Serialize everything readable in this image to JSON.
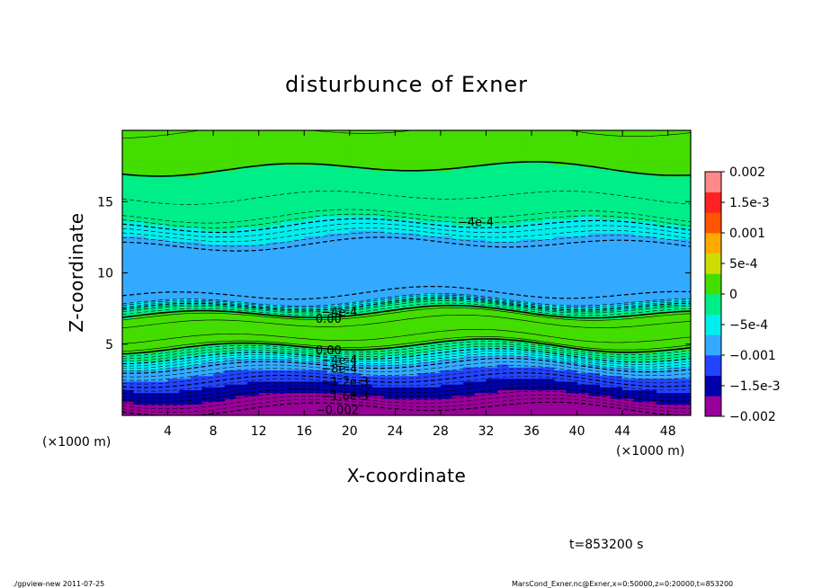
{
  "chart_data": {
    "type": "heatmap",
    "title": "disturbunce of Exner",
    "xlabel": "X-coordinate",
    "ylabel": "Z-coordinate",
    "x_scale_label": "(×1000 m)",
    "y_scale_label": "(×1000 m)",
    "xlim": [
      0,
      50
    ],
    "ylim": [
      0,
      20
    ],
    "x_ticks": [
      4,
      8,
      12,
      16,
      20,
      24,
      28,
      32,
      36,
      40,
      44,
      48
    ],
    "y_ticks": [
      5,
      10,
      15
    ],
    "colorbar": {
      "range": [
        -0.002,
        0.002
      ],
      "tick_labels": [
        "0.002",
        "1.5e-3",
        "0.001",
        "5e-4",
        "0",
        "−5e-4",
        "−0.001",
        "−1.5e-3",
        "−0.002"
      ],
      "tick_values": [
        0.002,
        0.0015,
        0.001,
        0.0005,
        0,
        -0.0005,
        -0.001,
        -0.0015,
        -0.002
      ],
      "colors": [
        "#990099",
        "#0000aa",
        "#2244ff",
        "#33aaff",
        "#00eeee",
        "#00ee88",
        "#44dd00",
        "#ccdd00",
        "#ffaa00",
        "#ff5500",
        "#ff2222",
        "#ff8888"
      ]
    },
    "profile_z": [
      0,
      1,
      2,
      3,
      3.5,
      4.5,
      5,
      6,
      7,
      7.5,
      8,
      9,
      10,
      12,
      13,
      14,
      16,
      20
    ],
    "profile_values": [
      -0.0022,
      -0.0018,
      -0.0014,
      -0.001,
      -0.0008,
      -0.0002,
      0.0001,
      0.0003,
      0.0001,
      -0.0002,
      -0.0007,
      -0.0009,
      -0.0009,
      -0.0008,
      -0.0005,
      -0.0002,
      -5e-05,
      0.0001
    ],
    "contour_labels": [
      {
        "text": "−4e-4",
        "x": 29.5,
        "z": 13.6
      },
      {
        "text": "−4e-4",
        "x": 17.5,
        "z": 7.3
      },
      {
        "text": "0.00",
        "x": 17.0,
        "z": 6.8
      },
      {
        "text": "0.00",
        "x": 17.0,
        "z": 4.6
      },
      {
        "text": "−4e-4",
        "x": 17.5,
        "z": 3.9
      },
      {
        "text": "−8e-4",
        "x": 17.5,
        "z": 3.3
      },
      {
        "text": "−1.2e-3",
        "x": 17.5,
        "z": 2.4
      },
      {
        "text": "−1.6e-3",
        "x": 17.5,
        "z": 1.4
      },
      {
        "text": "−0.002",
        "x": 17.0,
        "z": 0.4
      }
    ]
  },
  "time_label": "t=853200 s",
  "footer_left": "./gpview-new   2011-07-25",
  "footer_right": "MarsCond_Exner.nc@Exner,x=0:50000,z=0:20000,t=853200"
}
